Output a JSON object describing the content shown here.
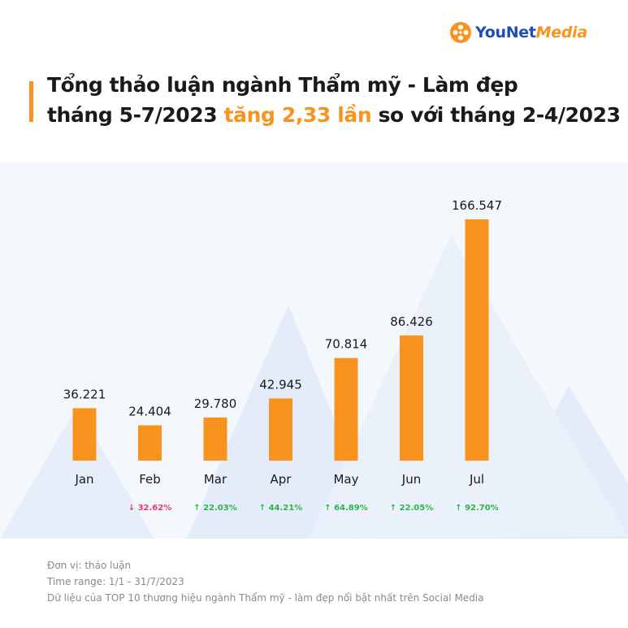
{
  "brand": {
    "logo_icon": "film-reel-icon",
    "name_part1": "YouNet",
    "name_part2": "Media",
    "colors": {
      "blue": "#1d4fae",
      "orange": "#f7931e"
    }
  },
  "headline": {
    "line1": "Tổng thảo luận ngành Thẩm mỹ - Làm đẹp",
    "line2_prefix": "tháng 5-7/2023 ",
    "line2_highlight": "tăng 2,33 lần",
    "line2_suffix": " so với tháng 2-4/2023"
  },
  "chart_data": {
    "type": "bar",
    "categories": [
      "Jan",
      "Feb",
      "Mar",
      "Apr",
      "May",
      "Jun",
      "Jul"
    ],
    "values": [
      36221,
      24404,
      29780,
      42945,
      70814,
      86426,
      166547
    ],
    "value_labels": [
      "36.221",
      "24.404",
      "29.780",
      "42.945",
      "70.814",
      "86.426",
      "166.547"
    ],
    "changes": [
      null,
      "↓ 32.62%",
      "↑ 22.03%",
      "↑ 44.21%",
      "↑ 64.89%",
      "↑ 22.05%",
      "↑ 92.70%"
    ],
    "change_direction": [
      null,
      "down",
      "up",
      "up",
      "up",
      "up",
      "up"
    ],
    "bar_color": "#f7931e",
    "up_color": "#2fb44a",
    "down_color": "#e23c6a",
    "ylim": [
      0,
      166547
    ]
  },
  "footer": {
    "unit": "Đơn vị: thảo luận",
    "time_range": "Time range: 1/1 - 31/7/2023",
    "source": "Dữ liệu của TOP 10 thương hiệu ngành Thẩm mỹ - làm đẹp nổi bật nhất trên Social Media"
  }
}
